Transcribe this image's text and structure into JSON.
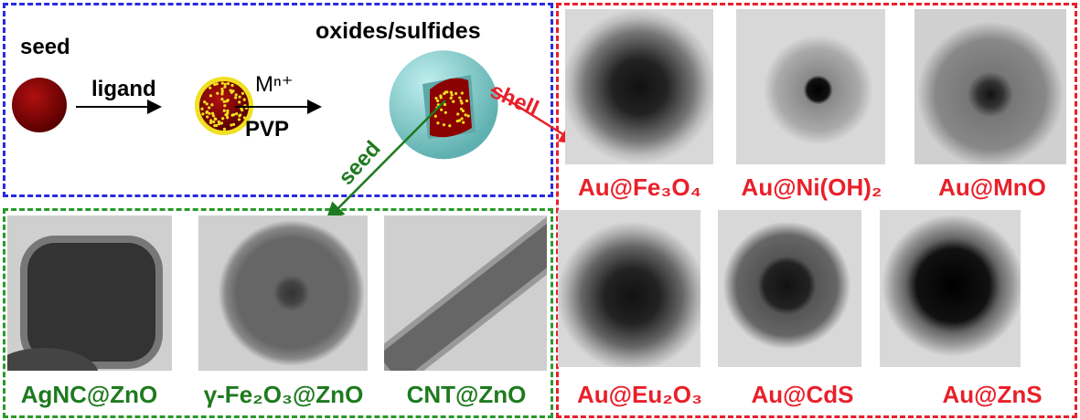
{
  "scheme": {
    "seed_label": "seed",
    "ligand_label": "ligand",
    "metal_ion_label": "Mⁿ⁺",
    "pvp_label": "PVP",
    "shell_material_label": "oxides/sulfides",
    "shell_arrow_label": "shell",
    "seed_arrow_label": "seed"
  },
  "colors": {
    "scheme_border": "#2a2ae0",
    "shell_border": "#e8202a",
    "seed_border": "#2a9a2a",
    "core": "#8b0000",
    "ligand": "#f0e020",
    "shell": "#7fcfcf"
  },
  "shell_examples": [
    {
      "label": "Au@Fe₃O₄"
    },
    {
      "label": "Au@Ni(OH)₂"
    },
    {
      "label": "Au@MnO"
    },
    {
      "label": "Au@Eu₂O₃"
    },
    {
      "label": "Au@CdS"
    },
    {
      "label": "Au@ZnS"
    }
  ],
  "seed_examples": [
    {
      "label": "AgNC@ZnO"
    },
    {
      "label": "γ-Fe₂O₃@ZnO"
    },
    {
      "label": "CNT@ZnO"
    }
  ]
}
